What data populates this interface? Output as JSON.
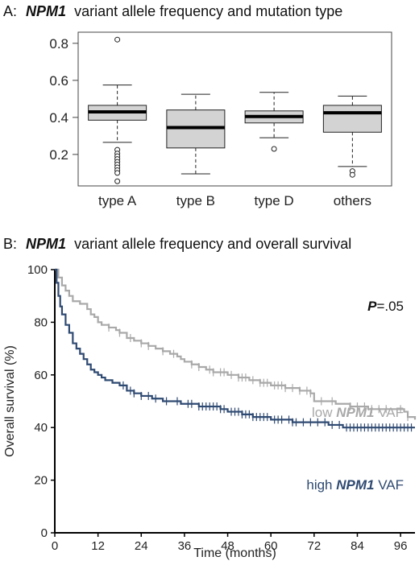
{
  "panel_a": {
    "label": "A:",
    "title_italic": "NPM1",
    "title_rest": " variant allele frequency and mutation type"
  },
  "panel_b": {
    "label": "B:",
    "title_italic": "NPM1",
    "title_rest": " variant allele frequency and overall survival",
    "p_italic": "P",
    "p_rest": "=.05",
    "low_label": {
      "pre": "low ",
      "italic": "NPM1",
      "post": " VAF"
    },
    "high_label": {
      "pre": "high ",
      "italic": "NPM1",
      "post": " VAF"
    }
  },
  "colors": {
    "box_fill": "#d3d3d3",
    "low_vaf": "#a9a9a9",
    "high_vaf": "#2f4a72"
  },
  "chart_data": [
    {
      "type": "box",
      "ylim": [
        0.03,
        0.86
      ],
      "yticks": [
        0.2,
        0.4,
        0.6,
        0.8
      ],
      "ytick_labels": [
        "0.2",
        "0.4",
        "0.6",
        "0.8"
      ],
      "categories": [
        "type A",
        "type B",
        "type D",
        "others"
      ],
      "boxes": [
        {
          "name": "type A",
          "min": 0.265,
          "q1": 0.385,
          "median": 0.43,
          "q3": 0.465,
          "max": 0.575,
          "outliers": [
            0.82,
            0.225,
            0.205,
            0.19,
            0.175,
            0.16,
            0.145,
            0.13,
            0.115,
            0.1,
            0.055
          ]
        },
        {
          "name": "type B",
          "min": 0.095,
          "q1": 0.235,
          "median": 0.345,
          "q3": 0.44,
          "max": 0.525,
          "outliers": []
        },
        {
          "name": "type D",
          "min": 0.29,
          "q1": 0.37,
          "median": 0.405,
          "q3": 0.435,
          "max": 0.535,
          "outliers": [
            0.23
          ]
        },
        {
          "name": "others",
          "min": 0.135,
          "q1": 0.32,
          "median": 0.425,
          "q3": 0.465,
          "max": 0.515,
          "outliers": [
            0.11,
            0.09
          ]
        }
      ]
    },
    {
      "type": "line",
      "xlabel": "Time (months)",
      "ylabel": "Overall survival (%)",
      "xlim": [
        0,
        100
      ],
      "ylim": [
        0,
        100
      ],
      "xticks": [
        0,
        12,
        24,
        36,
        48,
        60,
        72,
        84,
        96
      ],
      "yticks": [
        0,
        20,
        40,
        60,
        80,
        100
      ],
      "series": [
        {
          "name": "low NPM1 VAF",
          "points": [
            [
              0,
              100
            ],
            [
              1,
              97
            ],
            [
              2,
              94
            ],
            [
              3,
              92
            ],
            [
              4,
              90
            ],
            [
              5,
              88
            ],
            [
              7,
              87
            ],
            [
              9,
              85
            ],
            [
              10,
              83
            ],
            [
              11,
              82
            ],
            [
              12,
              80
            ],
            [
              13,
              79
            ],
            [
              15,
              78
            ],
            [
              17,
              77
            ],
            [
              18,
              76
            ],
            [
              20,
              74
            ],
            [
              22,
              73
            ],
            [
              24,
              72
            ],
            [
              26,
              71
            ],
            [
              28,
              70
            ],
            [
              30,
              69
            ],
            [
              32,
              68
            ],
            [
              34,
              67
            ],
            [
              35,
              66
            ],
            [
              36,
              65
            ],
            [
              38,
              64
            ],
            [
              40,
              63
            ],
            [
              42,
              62
            ],
            [
              44,
              61
            ],
            [
              46,
              61
            ],
            [
              48,
              60
            ],
            [
              51,
              59
            ],
            [
              54,
              58
            ],
            [
              57,
              57
            ],
            [
              60,
              56
            ],
            [
              64,
              55
            ],
            [
              68,
              54
            ],
            [
              71,
              53
            ],
            [
              72,
              50
            ],
            [
              78,
              49
            ],
            [
              82,
              48
            ],
            [
              87,
              47
            ],
            [
              94,
              47
            ],
            [
              97,
              46
            ],
            [
              98,
              44
            ],
            [
              100,
              43
            ]
          ],
          "censor_x": [
            15,
            18,
            21,
            24,
            26,
            30,
            33,
            38,
            40,
            43,
            44,
            46,
            47,
            49,
            51,
            52,
            53,
            55,
            57,
            58,
            59,
            61,
            62,
            63,
            64,
            66,
            68,
            70,
            71,
            74,
            77,
            82,
            84,
            86,
            88,
            90,
            92,
            96,
            98
          ]
        },
        {
          "name": "high NPM1 VAF",
          "points": [
            [
              0,
              100
            ],
            [
              0.5,
              95
            ],
            [
              1,
              90
            ],
            [
              1.5,
              86
            ],
            [
              2,
              83
            ],
            [
              3,
              79
            ],
            [
              4,
              76
            ],
            [
              5,
              72
            ],
            [
              6,
              70
            ],
            [
              7,
              68
            ],
            [
              8,
              66
            ],
            [
              9,
              64
            ],
            [
              10,
              62
            ],
            [
              11,
              61
            ],
            [
              12,
              60
            ],
            [
              13,
              59
            ],
            [
              14,
              58
            ],
            [
              16,
              57
            ],
            [
              18,
              56
            ],
            [
              20,
              54
            ],
            [
              22,
              53
            ],
            [
              24,
              52
            ],
            [
              27,
              51
            ],
            [
              30,
              50
            ],
            [
              35,
              49
            ],
            [
              40,
              48
            ],
            [
              46,
              47
            ],
            [
              48,
              46
            ],
            [
              52,
              45
            ],
            [
              55,
              44
            ],
            [
              60,
              43
            ],
            [
              66,
              42
            ],
            [
              72,
              42
            ],
            [
              76,
              41
            ],
            [
              80,
              40
            ],
            [
              86,
              40
            ],
            [
              92,
              40
            ],
            [
              96,
              40
            ],
            [
              100,
              40
            ]
          ],
          "censor_x": [
            19,
            21,
            22,
            24,
            26,
            28,
            31,
            34,
            37,
            38,
            40,
            41,
            42,
            43,
            44,
            45,
            46,
            47,
            49,
            50,
            51,
            52,
            53,
            54,
            55,
            56,
            57,
            58,
            59,
            61,
            62,
            63,
            65,
            66,
            67,
            69,
            71,
            73,
            75,
            77,
            79,
            81,
            82,
            83,
            84,
            85,
            86,
            87,
            88,
            89,
            90,
            91,
            92,
            93,
            94,
            95,
            96,
            97,
            98,
            99
          ]
        }
      ]
    }
  ]
}
